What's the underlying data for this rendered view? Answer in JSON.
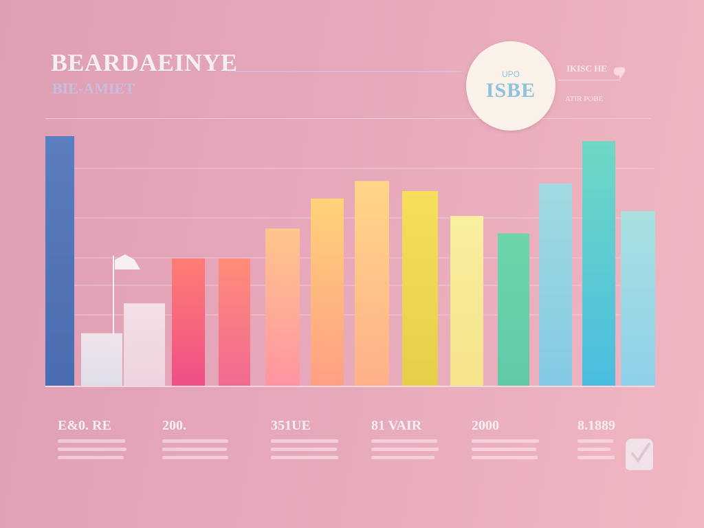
{
  "header": {
    "title": "BEARDAEINYE",
    "subtitle": "BIE-AMIET"
  },
  "badge": {
    "small": "UPO",
    "main": "ISBE"
  },
  "side": {
    "label": "IKISC HE",
    "label2": "ATIR POBE"
  },
  "stats": [
    {
      "value": "E&0. RE"
    },
    {
      "value": "200."
    },
    {
      "value": "351UE"
    },
    {
      "value": "81 VAIR"
    },
    {
      "value": "2000"
    },
    {
      "value": "8.1889"
    }
  ],
  "colors": {
    "background": "#e6a8ba",
    "accent_blue": "#5a7fc0",
    "accent_teal": "#6fd3c7"
  },
  "icons": [
    "flag-icon",
    "pin-icon",
    "clip-icon"
  ],
  "chart_data": {
    "type": "bar",
    "ylim": [
      0,
      100
    ],
    "grid": true,
    "series": [
      {
        "values": [
          100,
          21,
          33,
          51,
          51,
          63,
          75,
          82,
          78,
          68,
          61,
          81,
          98,
          70
        ],
        "colors": [
          [
            "#5b7ec0",
            "#4a6cb0"
          ],
          [
            "#f4f0f6",
            "#dfe7f2"
          ],
          [
            "#f7e9f0",
            "#efdbe6"
          ],
          [
            "#ff7d74",
            "#ef4f86"
          ],
          [
            "#ff8c78",
            "#f16a92"
          ],
          [
            "#ffc68c",
            "#ff94a2"
          ],
          [
            "#ffd27a",
            "#ff9f84"
          ],
          [
            "#ffd688",
            "#ffb08a"
          ],
          [
            "#f7de5c",
            "#e5cf48"
          ],
          [
            "#f8efa0",
            "#f5e38a"
          ],
          [
            "#6dd5a8",
            "#62c9a8"
          ],
          [
            "#a2dae0",
            "#83c9e4"
          ],
          [
            "#6fd8c3",
            "#49bde0"
          ],
          [
            "#a9e0e0",
            "#8fd0ea"
          ]
        ]
      }
    ]
  }
}
